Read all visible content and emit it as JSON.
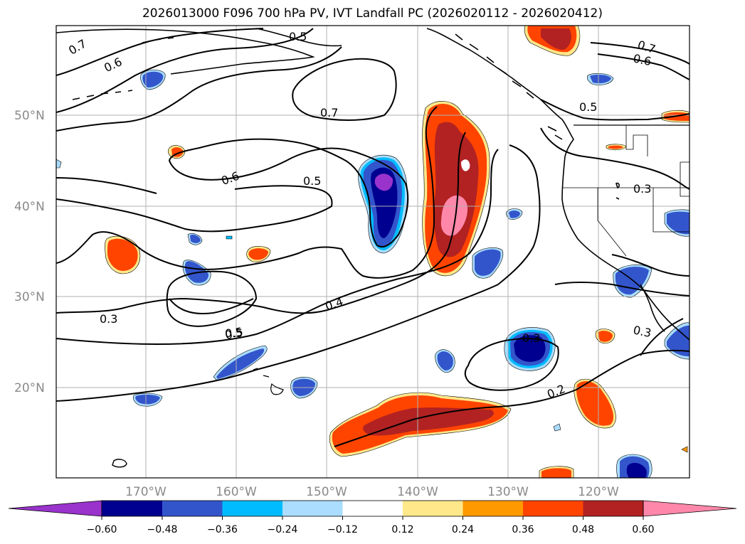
{
  "title": "2026013000 F096 700 hPa PV, IVT Landfall PC (2026020112 - 2026020412)",
  "map": {
    "lon_labels": [
      "170°W",
      "160°W",
      "150°W",
      "140°W",
      "130°W",
      "120°W"
    ],
    "lat_labels": [
      "50°N",
      "40°N",
      "30°N",
      "20°N"
    ],
    "contour_labels": [
      "0.7",
      "0.6",
      "0.5",
      "0.7",
      "0.6",
      "0.7",
      "0.6",
      "0.5",
      "0.5",
      "0.3",
      "0.4",
      "0.3",
      "0.5",
      "0.3",
      "0.3",
      "0.2",
      "0.5"
    ],
    "gridlines": true,
    "coastlines": true,
    "state_borders": true
  },
  "colorbar": {
    "tick_labels": [
      "−0.60",
      "−0.48",
      "−0.36",
      "−0.24",
      "−0.12",
      "0.12",
      "0.24",
      "0.36",
      "0.48",
      "0.60"
    ],
    "colors": [
      "#9933cc",
      "#000090",
      "#3355cc",
      "#00bbff",
      "#aaddff",
      "#ffffff",
      "#ffe88a",
      "#ff9900",
      "#ff4400",
      "#b22222",
      "#ff88aa"
    ],
    "extend": "both"
  }
}
